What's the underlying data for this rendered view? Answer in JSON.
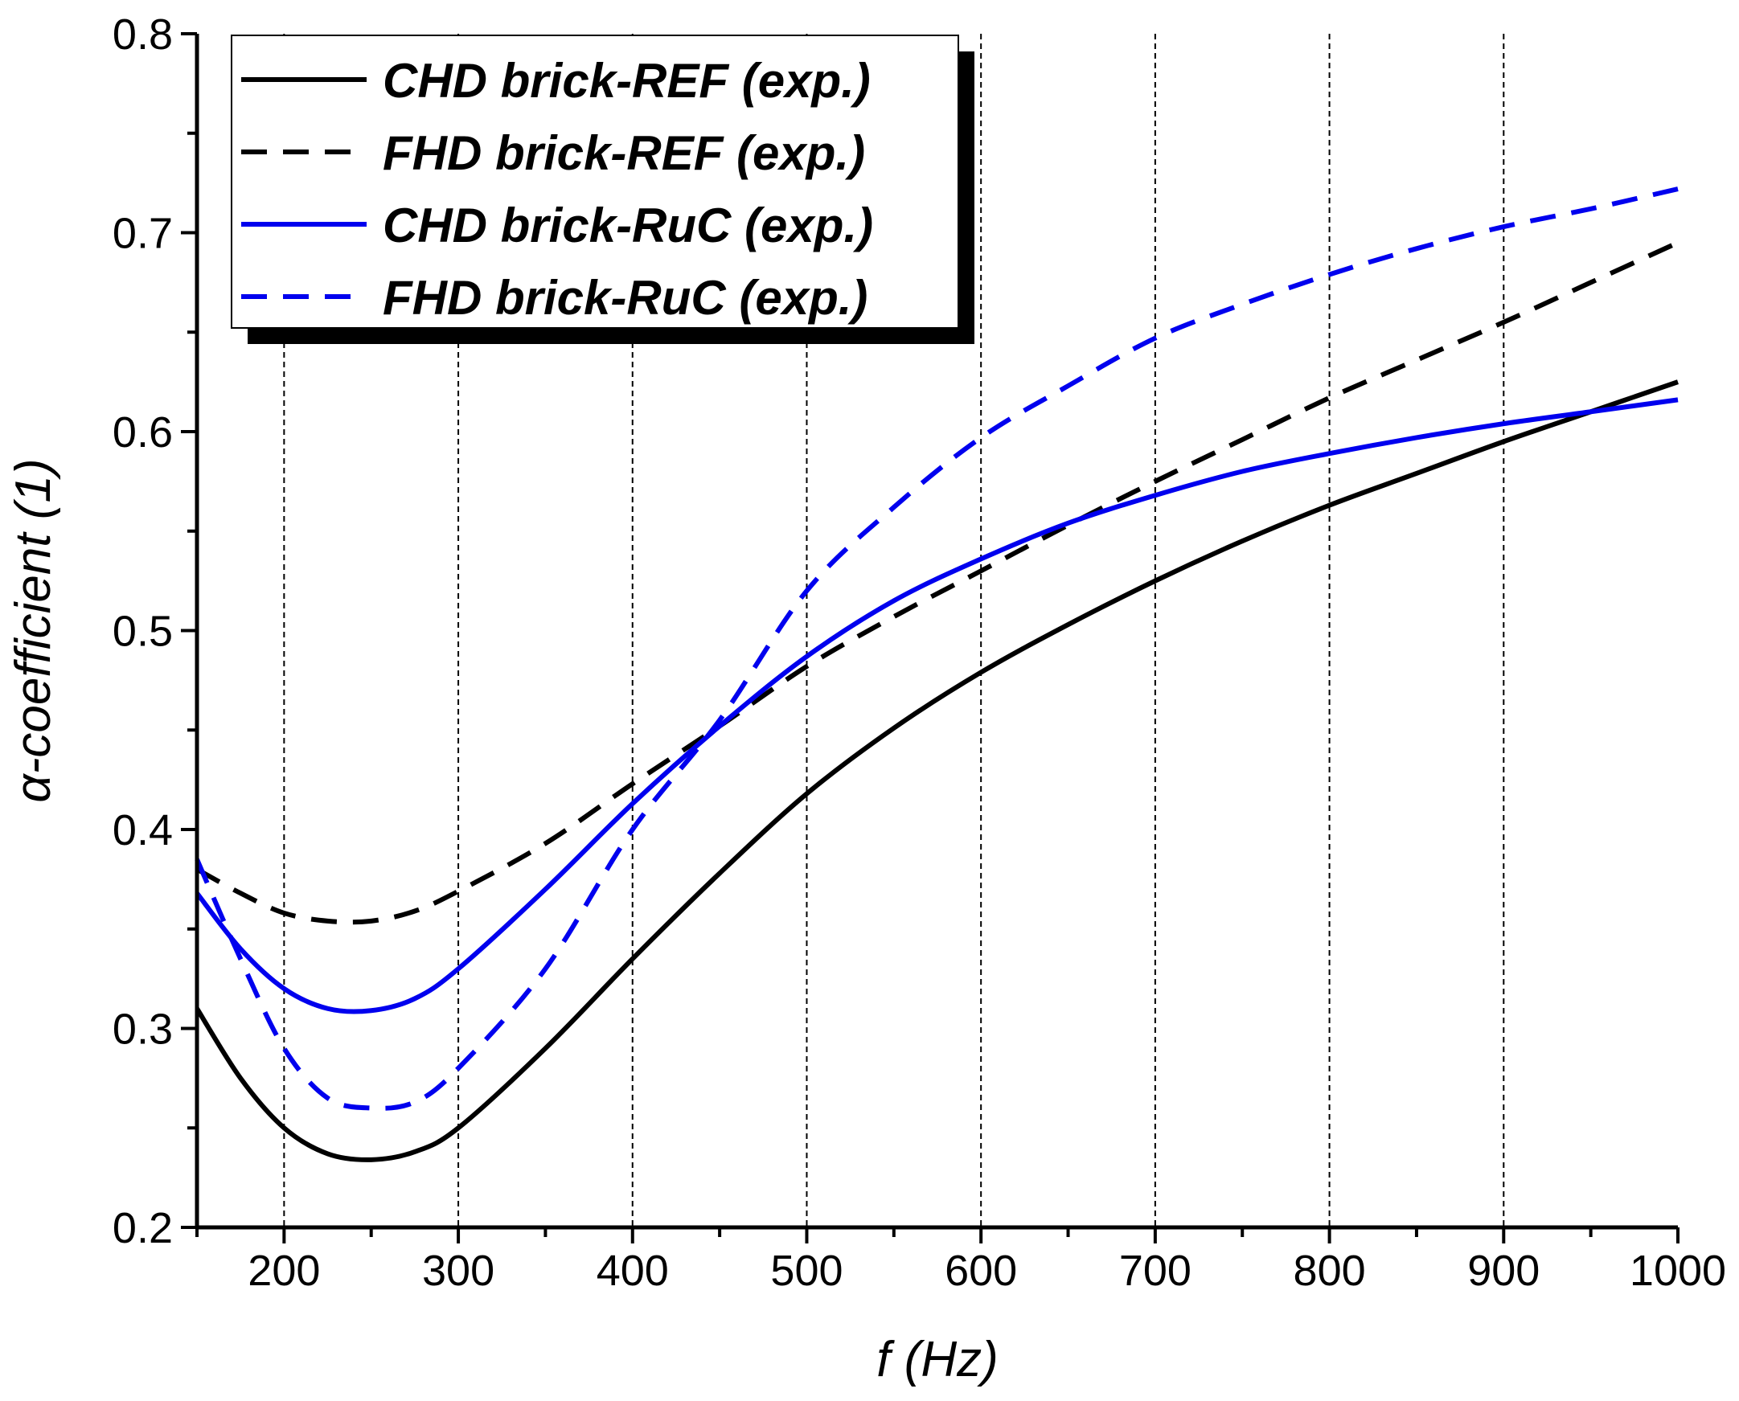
{
  "chart_data": {
    "type": "line",
    "title": "",
    "xlabel": "f (Hz)",
    "ylabel": "α-coefficient (1)",
    "xlim": [
      150,
      1000
    ],
    "ylim": [
      0.2,
      0.8
    ],
    "xticks": [
      200,
      300,
      400,
      500,
      600,
      700,
      800,
      900,
      1000
    ],
    "yticks": [
      0.2,
      0.3,
      0.4,
      0.5,
      0.6,
      0.7,
      0.8
    ],
    "xtick_labels": [
      "200",
      "300",
      "400",
      "500",
      "600",
      "700",
      "800",
      "900",
      "1000"
    ],
    "ytick_labels": [
      "0.2",
      "0.3",
      "0.4",
      "0.5",
      "0.6",
      "0.7",
      "0.8"
    ],
    "grid": "vertical dashed at major x ticks",
    "legend": "top-left",
    "series": [
      {
        "name": "CHD brick-REF (exp.)",
        "color": "#000000",
        "dash": "solid",
        "x": [
          150,
          175,
          200,
          225,
          250,
          275,
          300,
          350,
          400,
          450,
          500,
          550,
          600,
          650,
          700,
          750,
          800,
          850,
          900,
          950,
          1000
        ],
        "y": [
          0.31,
          0.275,
          0.25,
          0.237,
          0.234,
          0.238,
          0.25,
          0.29,
          0.335,
          0.378,
          0.418,
          0.451,
          0.479,
          0.503,
          0.525,
          0.545,
          0.563,
          0.579,
          0.595,
          0.61,
          0.625
        ]
      },
      {
        "name": "FHD brick-REF (exp.)",
        "color": "#000000",
        "dash": "dashed",
        "x": [
          150,
          175,
          200,
          225,
          250,
          275,
          300,
          350,
          400,
          450,
          500,
          550,
          600,
          650,
          700,
          750,
          800,
          850,
          900,
          950,
          1000
        ],
        "y": [
          0.38,
          0.368,
          0.358,
          0.354,
          0.354,
          0.359,
          0.369,
          0.393,
          0.423,
          0.452,
          0.482,
          0.507,
          0.53,
          0.553,
          0.575,
          0.596,
          0.617,
          0.636,
          0.655,
          0.675,
          0.695
        ]
      },
      {
        "name": "CHD brick-RuC (exp.)",
        "color": "#0000ee",
        "dash": "solid",
        "x": [
          150,
          175,
          200,
          225,
          250,
          275,
          300,
          350,
          400,
          450,
          500,
          550,
          600,
          650,
          700,
          750,
          800,
          850,
          900,
          950,
          1000
        ],
        "y": [
          0.368,
          0.34,
          0.32,
          0.31,
          0.309,
          0.315,
          0.33,
          0.37,
          0.413,
          0.452,
          0.487,
          0.515,
          0.536,
          0.554,
          0.568,
          0.58,
          0.589,
          0.597,
          0.604,
          0.61,
          0.616
        ]
      },
      {
        "name": "FHD brick-RuC (exp.)",
        "color": "#0000ee",
        "dash": "dashed",
        "x": [
          150,
          175,
          200,
          225,
          250,
          275,
          300,
          350,
          400,
          450,
          500,
          550,
          600,
          650,
          700,
          750,
          800,
          850,
          900,
          950,
          1000
        ],
        "y": [
          0.385,
          0.335,
          0.29,
          0.265,
          0.26,
          0.263,
          0.28,
          0.33,
          0.4,
          0.455,
          0.52,
          0.562,
          0.597,
          0.623,
          0.647,
          0.664,
          0.679,
          0.692,
          0.703,
          0.712,
          0.722
        ]
      }
    ]
  }
}
